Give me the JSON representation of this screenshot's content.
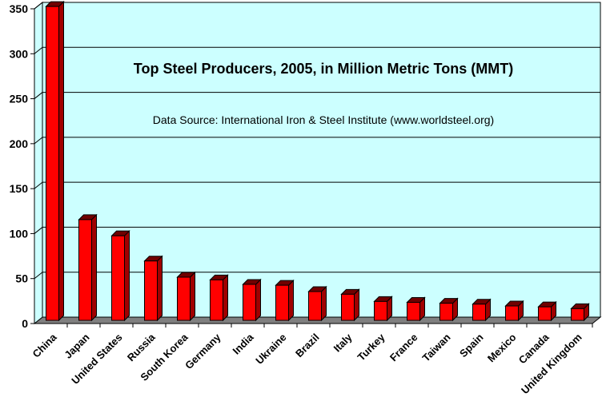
{
  "chart_data": {
    "type": "bar",
    "title": "Top Steel Producers, 2005, in Million Metric Tons (MMT)",
    "subtitle": "Data Source: International Iron & Steel Institute (www.worldsteel.org)",
    "categories": [
      "China",
      "Japan",
      "United States",
      "Russia",
      "South Korea",
      "Germany",
      "India",
      "Ukraine",
      "Brazil",
      "Italy",
      "Turkey",
      "France",
      "Taiwan",
      "Spain",
      "Mexico",
      "Canada",
      "United Kingdom"
    ],
    "values": [
      349,
      112,
      94,
      66,
      48,
      45,
      40,
      39,
      32,
      29,
      21,
      20,
      19,
      18,
      16,
      15,
      13
    ],
    "ylim": [
      0,
      350
    ],
    "yticks": [
      0,
      50,
      100,
      150,
      200,
      250,
      300,
      350
    ],
    "grid": true,
    "colors": {
      "plot_background": "#ccffff",
      "bar": "#ff0000",
      "floor": "#808080",
      "axis": "#000000"
    }
  }
}
